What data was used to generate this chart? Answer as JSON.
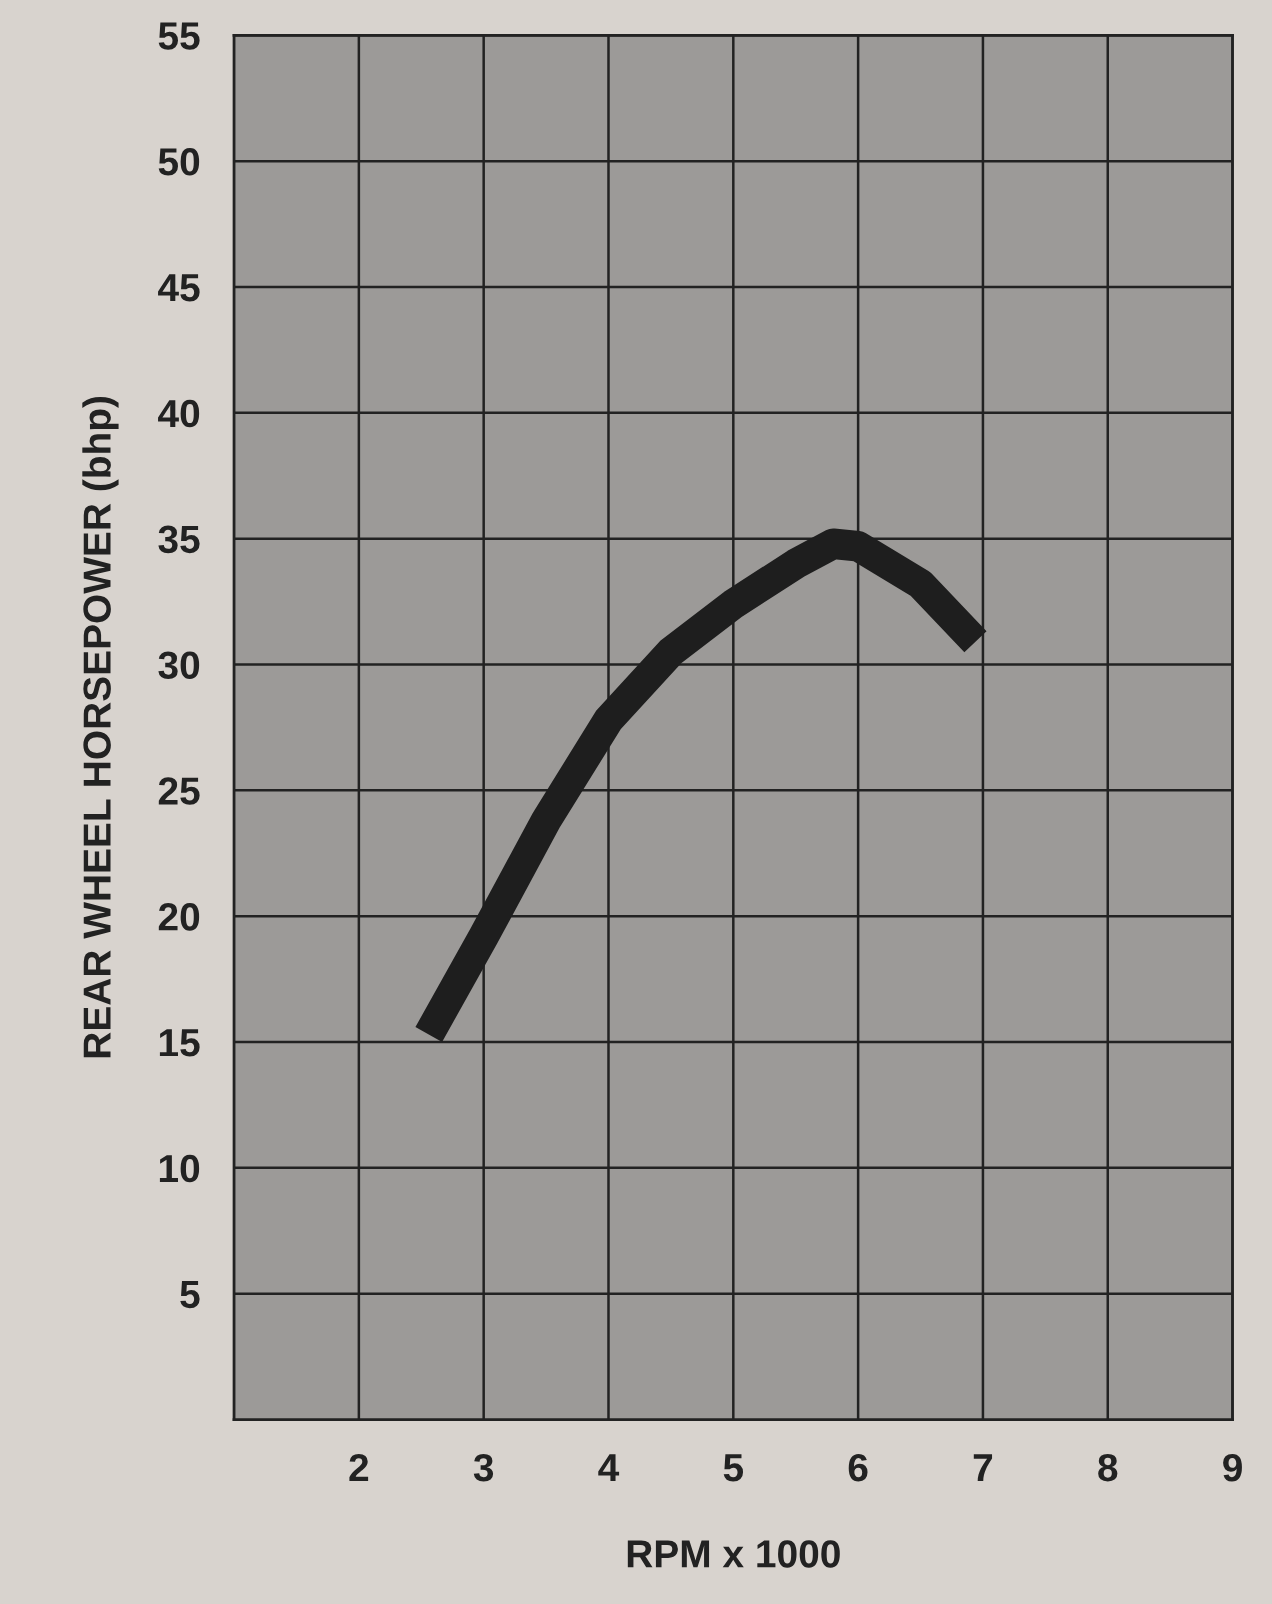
{
  "chart_data": {
    "type": "line",
    "xlabel": "RPM x 1000",
    "ylabel": "REAR WHEEL HORSEPOWER (bhp)",
    "series": [
      {
        "color": "#1e1e1e",
        "x": [
          2.56,
          3.0,
          3.5,
          4.0,
          4.5,
          5.0,
          5.5,
          5.8,
          6.0,
          6.5,
          6.94
        ],
        "values": [
          15.3,
          19.2,
          23.8,
          27.8,
          30.5,
          32.4,
          34.0,
          34.8,
          34.7,
          33.2,
          30.9
        ]
      }
    ],
    "xlim": [
      1,
      9
    ],
    "ylim": [
      0,
      55
    ],
    "xticks": [
      2,
      3,
      4,
      5,
      6,
      7,
      8,
      9
    ],
    "yticks": [
      5,
      10,
      15,
      20,
      25,
      30,
      35,
      40,
      45,
      50,
      55
    ],
    "grid": true,
    "marker": "none",
    "line_style": "solid"
  }
}
